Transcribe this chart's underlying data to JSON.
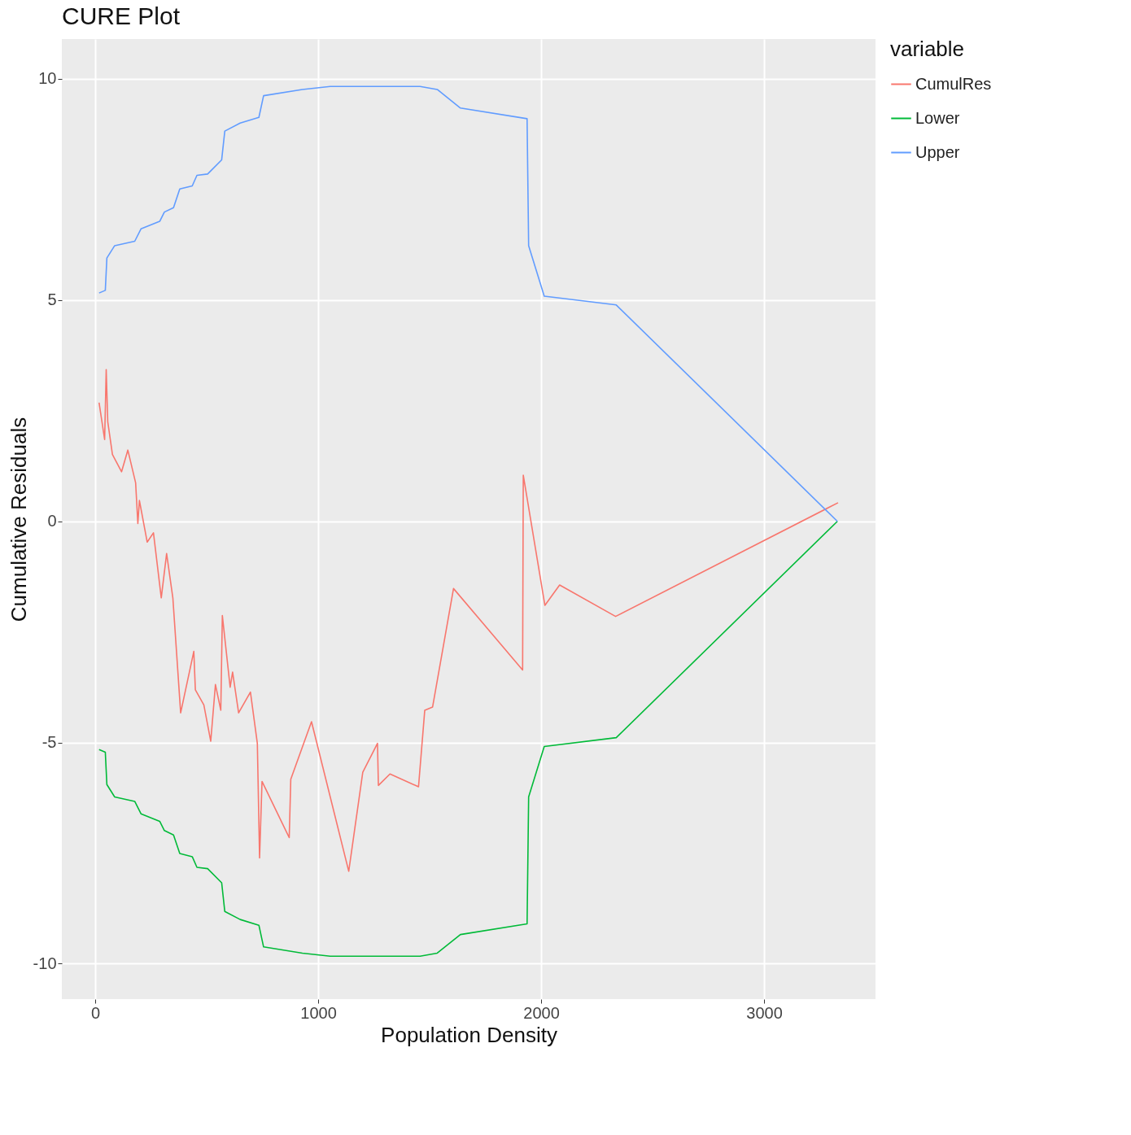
{
  "chart_data": {
    "type": "line",
    "title": "CURE Plot",
    "xlabel": "Population Density",
    "ylabel": "Cumulative Residuals",
    "legend_title": "variable",
    "legend": "right",
    "grid": true,
    "xlim": [
      -150,
      3500
    ],
    "ylim": [
      -10.8,
      10.9
    ],
    "xticks": [
      0,
      {
        "value": 1000,
        "label": "1000"
      },
      {
        "value": 2000,
        "label": "2000"
      },
      {
        "value": 3000,
        "label": "3000"
      }
    ],
    "yticks": [
      -10,
      -5,
      0,
      5,
      10
    ],
    "series": [
      {
        "name": "CumulRes",
        "color": "#f8766d",
        "x": [
          17,
          42,
          49,
          56,
          77,
          118,
          146,
          181,
          191,
          198,
          233,
          261,
          296,
          320,
          348,
          383,
          442,
          449,
          487,
          518,
          539,
          563,
          570,
          605,
          616,
          643,
          696,
          727,
          737,
          748,
          870,
          877,
          970,
          1137,
          1200,
          1266,
          1270,
          1322,
          1450,
          1478,
          1513,
          1607,
          1917,
          1920,
          2017,
          2083,
          2334,
          3332
        ],
        "values": [
          2.68,
          1.85,
          3.43,
          2.25,
          1.51,
          1.12,
          1.61,
          0.87,
          -0.05,
          0.47,
          -0.47,
          -0.26,
          -1.73,
          -0.73,
          -1.73,
          -4.33,
          -2.94,
          -3.81,
          -4.15,
          -4.97,
          -3.69,
          -4.27,
          -2.13,
          -3.75,
          -3.41,
          -4.33,
          -3.86,
          -5.02,
          -7.61,
          -5.88,
          -7.15,
          -5.83,
          -4.53,
          -7.91,
          -5.67,
          -5.02,
          -5.97,
          -5.71,
          -6.0,
          -4.27,
          -4.2,
          -1.52,
          -3.36,
          1.04,
          -1.9,
          -1.44,
          -2.15,
          0.42
        ]
      },
      {
        "name": "Lower",
        "color": "#00ba38",
        "x": [
          17,
          45,
          52,
          87,
          177,
          205,
          289,
          310,
          351,
          379,
          435,
          456,
          504,
          567,
          581,
          650,
          734,
          755,
          929,
          1054,
          1457,
          1534,
          1638,
          1937,
          1944,
          2014,
          2337,
          3329
        ],
        "values": [
          -5.16,
          -5.22,
          -5.95,
          -6.23,
          -6.33,
          -6.61,
          -6.78,
          -6.99,
          -7.09,
          -7.51,
          -7.58,
          -7.82,
          -7.85,
          -8.17,
          -8.82,
          -9.0,
          -9.13,
          -9.62,
          -9.76,
          -9.83,
          -9.83,
          -9.76,
          -9.34,
          -9.1,
          -6.23,
          -5.09,
          -4.89,
          0
        ]
      },
      {
        "name": "Upper",
        "color": "#619cff",
        "x": [
          17,
          45,
          52,
          87,
          177,
          205,
          289,
          310,
          351,
          379,
          435,
          456,
          504,
          567,
          581,
          650,
          734,
          755,
          929,
          1054,
          1457,
          1534,
          1638,
          1937,
          1944,
          2014,
          2337,
          3329
        ],
        "values": [
          5.16,
          5.22,
          5.95,
          6.23,
          6.33,
          6.61,
          6.78,
          6.99,
          7.09,
          7.51,
          7.58,
          7.82,
          7.85,
          8.17,
          8.82,
          9.0,
          9.13,
          9.62,
          9.76,
          9.83,
          9.83,
          9.76,
          9.34,
          9.1,
          6.23,
          5.09,
          4.89,
          0
        ]
      }
    ]
  }
}
